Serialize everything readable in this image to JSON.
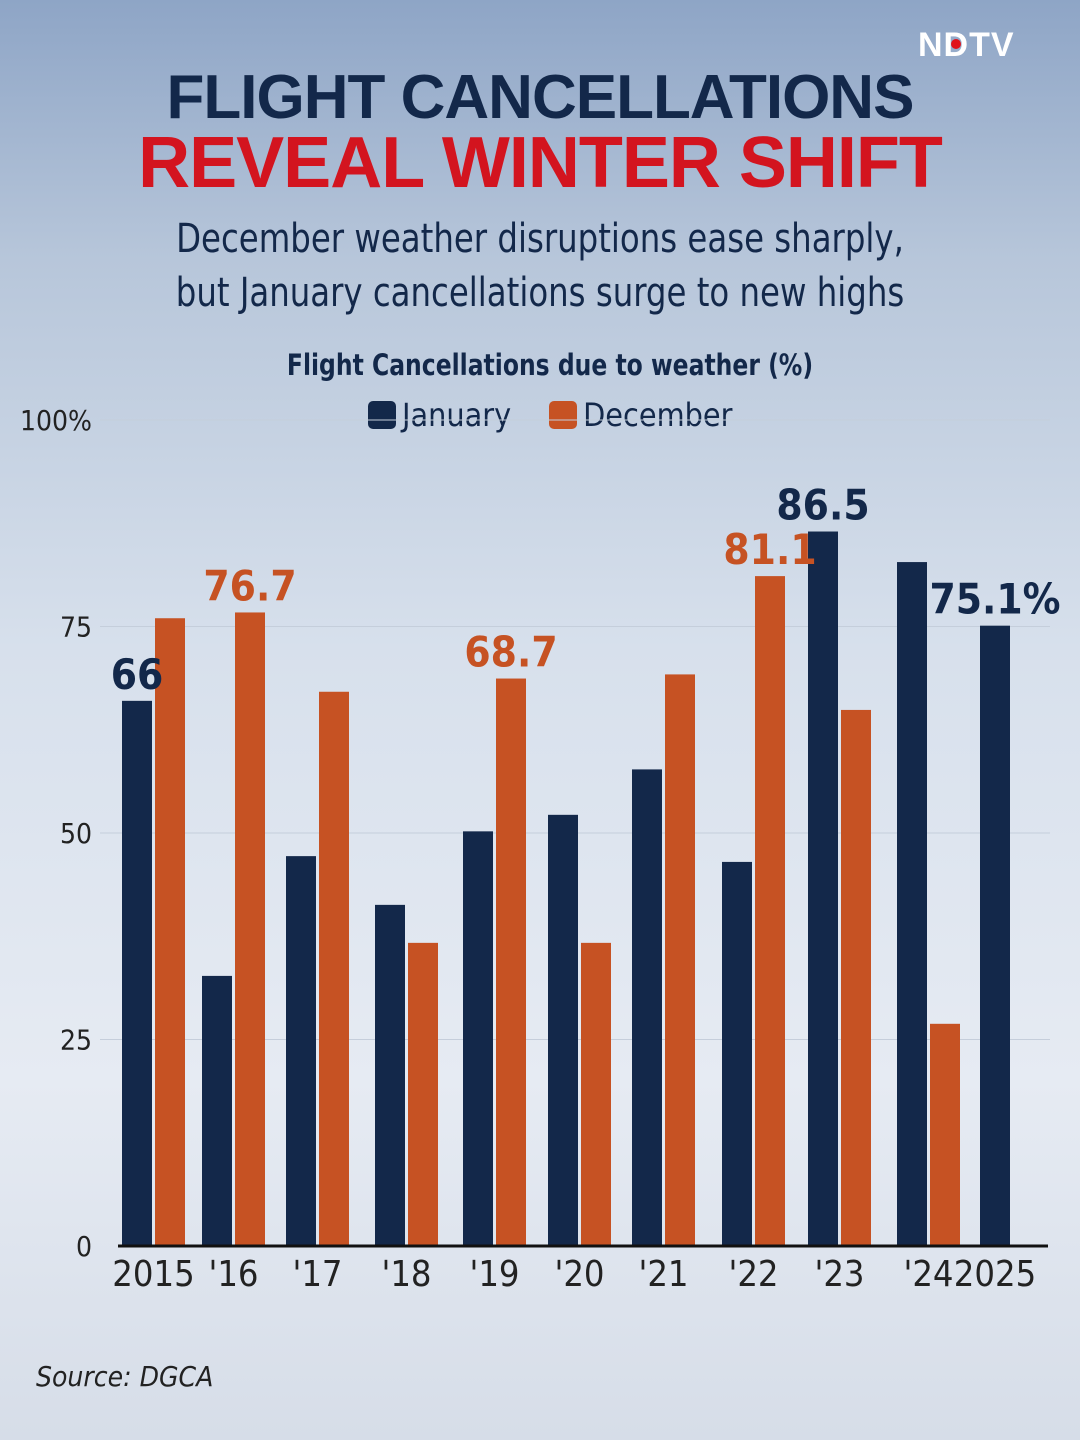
{
  "brand": {
    "logo": "NDTV"
  },
  "header": {
    "title_line1": "FLIGHT CANCELLATIONS",
    "title_line2": "REVEAL WINTER SHIFT",
    "subtitle_line1": "December weather disruptions ease sharply,",
    "subtitle_line2": "but January cancellations surge to new highs"
  },
  "footer": {
    "source": "Source: DGCA"
  },
  "colors": {
    "january": "#13284a",
    "december": "#c65223",
    "title_red": "#d3141f"
  },
  "chart_data": {
    "type": "bar",
    "title": "Flight Cancellations due to weather (%)",
    "categories": [
      "2015",
      "'16",
      "'17",
      "'18",
      "'19",
      "'20",
      "'21",
      "'22",
      "'23",
      "'24",
      "2025"
    ],
    "series": [
      {
        "name": "January",
        "values": [
          66,
          32.7,
          47.2,
          41.3,
          50.2,
          52.2,
          57.7,
          46.5,
          86.5,
          82.8,
          75.1
        ]
      },
      {
        "name": "December",
        "values": [
          76.0,
          76.7,
          67.1,
          36.7,
          68.7,
          36.7,
          69.2,
          81.1,
          64.9,
          26.9,
          null
        ]
      }
    ],
    "annotations": [
      {
        "series": "January",
        "category": "2015",
        "text": "66"
      },
      {
        "series": "December",
        "category": "'16",
        "text": "76.7"
      },
      {
        "series": "December",
        "category": "'19",
        "text": "68.7"
      },
      {
        "series": "December",
        "category": "'22",
        "text": "81.1"
      },
      {
        "series": "January",
        "category": "'23",
        "text": "86.5"
      },
      {
        "series": "January",
        "category": "2025",
        "text": "75.1%"
      }
    ],
    "yticks": [
      "0",
      "25",
      "50",
      "75",
      "100%"
    ],
    "ylim": [
      0,
      100
    ],
    "grid": true,
    "legend": "top-center"
  }
}
